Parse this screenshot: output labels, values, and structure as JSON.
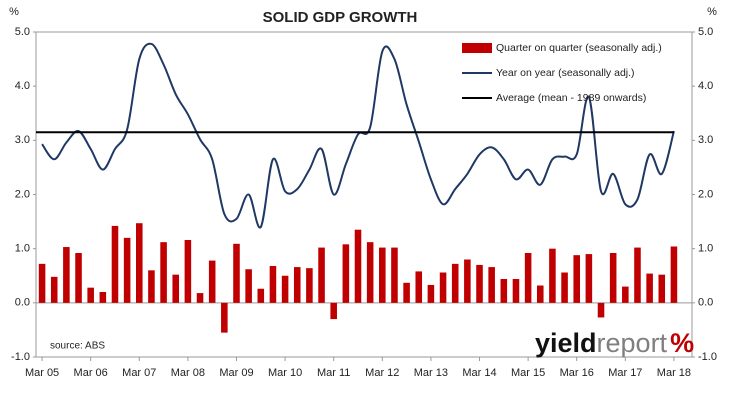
{
  "chart_data": {
    "type": "bar_line",
    "title": "SOLID GDP GROWTH",
    "y_label": "%",
    "y2_label": "%",
    "categories": [
      "Mar 05",
      null,
      null,
      null,
      "Mar 06",
      null,
      null,
      null,
      "Mar 07",
      null,
      null,
      null,
      "Mar 08",
      null,
      null,
      null,
      "Mar 09",
      null,
      null,
      null,
      "Mar 10",
      null,
      null,
      null,
      "Mar 11",
      null,
      null,
      null,
      "Mar 12",
      null,
      null,
      null,
      "Mar 13",
      null,
      null,
      null,
      "Mar 14",
      null,
      null,
      null,
      "Mar 15",
      null,
      null,
      null,
      "Mar 16",
      null,
      null,
      null,
      "Mar 17",
      null,
      null,
      null,
      "Mar 18"
    ],
    "series": [
      {
        "name": "Quarter on quarter (seasonally adj.)",
        "color": "#c00000",
        "kind": "bar",
        "values": [
          0.72,
          0.48,
          1.03,
          0.92,
          0.28,
          0.2,
          1.42,
          1.2,
          1.47,
          0.6,
          1.12,
          0.52,
          1.16,
          0.18,
          0.78,
          -0.55,
          1.09,
          0.62,
          0.26,
          0.68,
          0.5,
          0.66,
          0.64,
          1.02,
          -0.3,
          1.08,
          1.35,
          1.12,
          1.02,
          1.02,
          0.37,
          0.58,
          0.33,
          0.56,
          0.72,
          0.8,
          0.7,
          0.66,
          0.44,
          0.44,
          0.92,
          0.32,
          1.0,
          0.56,
          0.88,
          0.9,
          -0.27,
          0.92,
          0.3,
          1.02,
          0.54,
          0.52,
          1.04
        ]
      },
      {
        "name": "Year on year (seasonally adj.)",
        "color": "#1f3864",
        "kind": "line",
        "values": [
          2.93,
          2.65,
          2.96,
          3.17,
          2.84,
          2.46,
          2.84,
          3.2,
          4.5,
          4.78,
          4.4,
          3.85,
          3.48,
          3.02,
          2.65,
          1.64,
          1.55,
          2.0,
          1.4,
          2.65,
          2.06,
          2.1,
          2.46,
          2.84,
          2.0,
          2.56,
          3.11,
          3.24,
          4.64,
          4.5,
          3.66,
          2.98,
          2.28,
          1.82,
          2.1,
          2.38,
          2.74,
          2.87,
          2.65,
          2.28,
          2.46,
          2.18,
          2.65,
          2.7,
          2.74,
          3.8,
          2.06,
          2.38,
          1.82,
          1.91,
          2.74,
          2.38,
          3.17
        ]
      },
      {
        "name": "Average (mean - 1989 onwards)",
        "color": "#000000",
        "kind": "hline",
        "value": 3.15
      }
    ],
    "ylim": [
      -1,
      5
    ],
    "yticks": [
      {
        "value": -1,
        "label": "-1.0"
      },
      {
        "value": 0,
        "label": "0.0"
      },
      {
        "value": 1,
        "label": "1.0"
      },
      {
        "value": 2,
        "label": "2.0"
      },
      {
        "value": 3,
        "label": "3.0"
      },
      {
        "value": 4,
        "label": "4.0"
      },
      {
        "value": 5,
        "label": "5.0"
      }
    ],
    "y2lim": [
      -1,
      5
    ],
    "y2ticks": [
      {
        "value": -1,
        "label": "-1.0"
      },
      {
        "value": 0,
        "label": "0.0"
      },
      {
        "value": 1,
        "label": "1.0"
      },
      {
        "value": 2,
        "label": "2.0"
      },
      {
        "value": 3,
        "label": "3.0"
      },
      {
        "value": 4,
        "label": "4.0"
      },
      {
        "value": 5,
        "label": "5.0"
      }
    ],
    "legend": "top-right",
    "source": "source: ABS",
    "logo": {
      "first": "yield",
      "second": "report",
      "mark": "%"
    }
  }
}
